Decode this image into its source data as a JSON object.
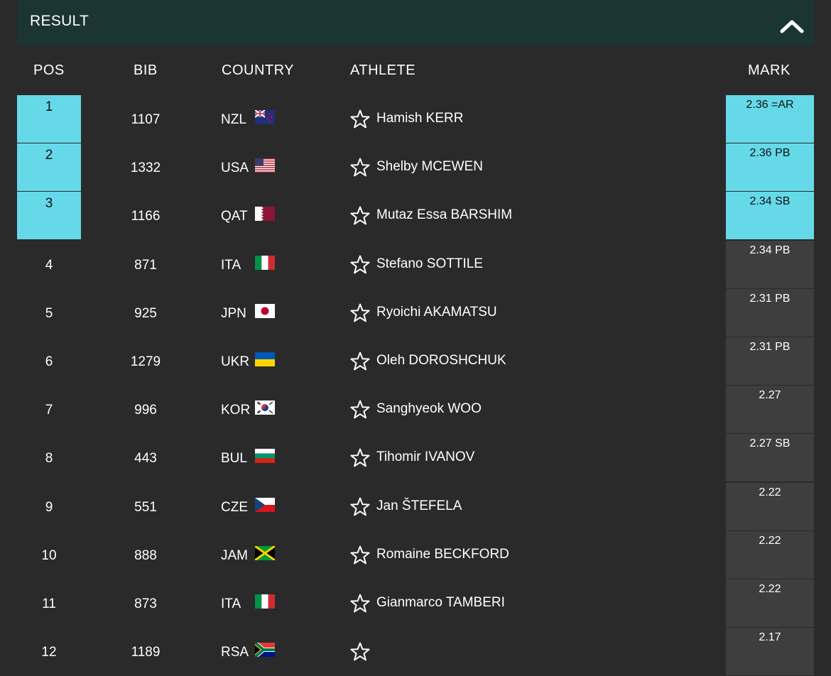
{
  "header": {
    "title": "RESULT",
    "toggle_icon": "chevron-up-icon"
  },
  "columns": {
    "pos": "POS",
    "bib": "BIB",
    "country": "COUNTRY",
    "athlete": "ATHLETE",
    "mark": "MARK"
  },
  "colors": {
    "medal": "#66d9e8",
    "header_bg": "#1b3434",
    "page_bg": "#2a2a2a",
    "mark_bg": "#3e3e3e"
  },
  "rows": [
    {
      "pos": "1",
      "bib": "1107",
      "country": "NZL",
      "athlete": "Hamish KERR",
      "mark": "2.36 =AR",
      "medal": true
    },
    {
      "pos": "2",
      "bib": "1332",
      "country": "USA",
      "athlete": "Shelby MCEWEN",
      "mark": "2.36 PB",
      "medal": true
    },
    {
      "pos": "3",
      "bib": "1166",
      "country": "QAT",
      "athlete": "Mutaz Essa BARSHIM",
      "mark": "2.34 SB",
      "medal": true
    },
    {
      "pos": "4",
      "bib": "871",
      "country": "ITA",
      "athlete": "Stefano SOTTILE",
      "mark": "2.34 PB",
      "medal": false
    },
    {
      "pos": "5",
      "bib": "925",
      "country": "JPN",
      "athlete": "Ryoichi AKAMATSU",
      "mark": "2.31 PB",
      "medal": false
    },
    {
      "pos": "6",
      "bib": "1279",
      "country": "UKR",
      "athlete": "Oleh DOROSHCHUK",
      "mark": "2.31 PB",
      "medal": false
    },
    {
      "pos": "7",
      "bib": "996",
      "country": "KOR",
      "athlete": "Sanghyeok WOO",
      "mark": "2.27",
      "medal": false
    },
    {
      "pos": "8",
      "bib": "443",
      "country": "BUL",
      "athlete": "Tihomir IVANOV",
      "mark": "2.27 SB",
      "medal": false
    },
    {
      "pos": "9",
      "bib": "551",
      "country": "CZE",
      "athlete": "Jan ŠTEFELA",
      "mark": "2.22",
      "medal": false
    },
    {
      "pos": "10",
      "bib": "888",
      "country": "JAM",
      "athlete": "Romaine BECKFORD",
      "mark": "2.22",
      "medal": false
    },
    {
      "pos": "11",
      "bib": "873",
      "country": "ITA",
      "athlete": "Gianmarco TAMBERI",
      "mark": "2.22",
      "medal": false
    },
    {
      "pos": "12",
      "bib": "1189",
      "country": "RSA",
      "athlete": "",
      "mark": "2.17",
      "medal": false
    }
  ]
}
